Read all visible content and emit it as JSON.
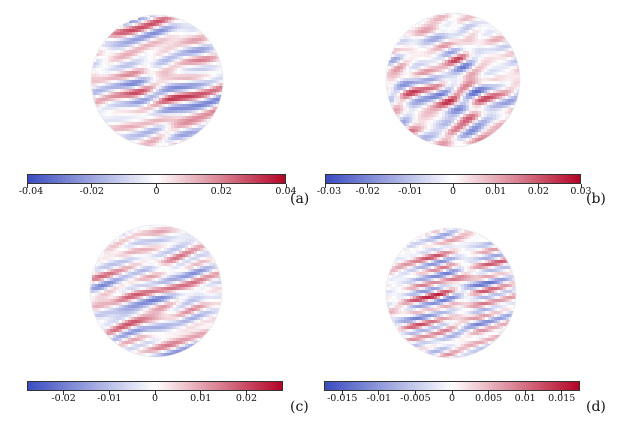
{
  "colors": {
    "neg": "#3b4cc0",
    "mid": "#ffffff",
    "pos": "#b40426"
  },
  "panels": [
    {
      "id": "a",
      "label": "(a)",
      "ticks": [
        "-0.04",
        "-0.02",
        "0",
        "0.02",
        "0.04"
      ],
      "tick_values": [
        -0.04,
        -0.02,
        0,
        0.02,
        0.04
      ],
      "range": [
        -0.04,
        0.04
      ]
    },
    {
      "id": "b",
      "label": "(b)",
      "ticks": [
        "-0.03",
        "-0.02",
        "-0.01",
        "0",
        "0.01",
        "0.02",
        "0.03"
      ],
      "tick_values": [
        -0.03,
        -0.02,
        -0.01,
        0,
        0.01,
        0.02,
        0.03
      ],
      "range": [
        -0.03,
        0.03
      ]
    },
    {
      "id": "c",
      "label": "(c)",
      "ticks": [
        "-0.02",
        "-0.01",
        "0",
        "0.01",
        "0.02"
      ],
      "tick_values": [
        -0.02,
        -0.01,
        0,
        0.01,
        0.02
      ],
      "range": [
        -0.028,
        0.028
      ]
    },
    {
      "id": "d",
      "label": "(d)",
      "ticks": [
        "-0.015",
        "-0.01",
        "-0.005",
        "0",
        "0.005",
        "0.01",
        "0.015"
      ],
      "tick_values": [
        -0.015,
        -0.01,
        -0.005,
        0,
        0.005,
        0.01,
        0.015
      ],
      "range": [
        -0.0175,
        0.0175
      ]
    }
  ]
}
